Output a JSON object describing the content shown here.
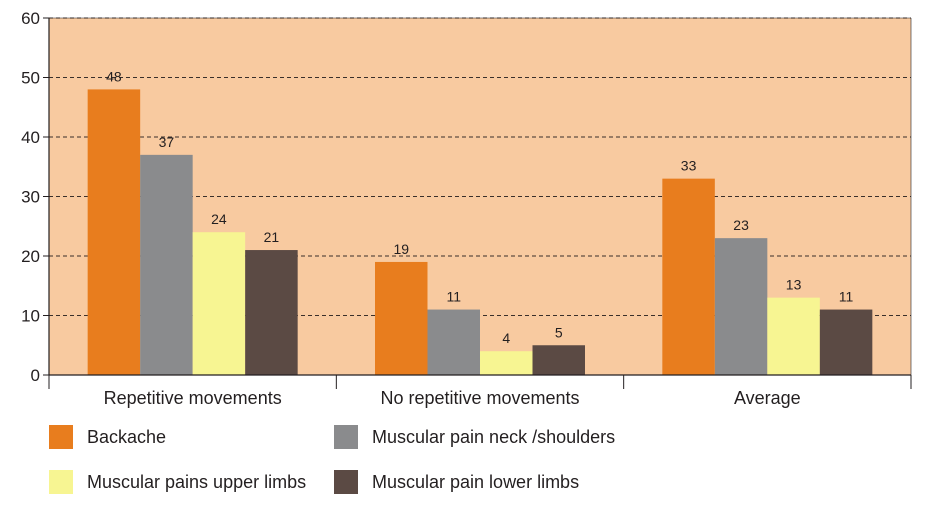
{
  "chart_data": {
    "type": "bar",
    "title": "",
    "xlabel": "",
    "ylabel": "",
    "ylim": [
      0,
      60
    ],
    "yticks": [
      0,
      10,
      20,
      30,
      40,
      50,
      60
    ],
    "grid": "dashed horizontal",
    "background_color": "#f8caa0",
    "categories": [
      "Repetitive movements",
      "No repetitive movements",
      "Average"
    ],
    "series": [
      {
        "name": "Backache",
        "color": "#e87d1e",
        "values": [
          48,
          19,
          33
        ]
      },
      {
        "name": "Muscular pain neck /shoulders",
        "color": "#8a8b8d",
        "values": [
          37,
          11,
          23
        ]
      },
      {
        "name": "Muscular pains upper limbs",
        "color": "#f7f592",
        "values": [
          24,
          4,
          13
        ]
      },
      {
        "name": "Muscular pain lower limbs",
        "color": "#5b4a44",
        "values": [
          21,
          5,
          11
        ]
      }
    ],
    "legend_position": "bottom"
  }
}
